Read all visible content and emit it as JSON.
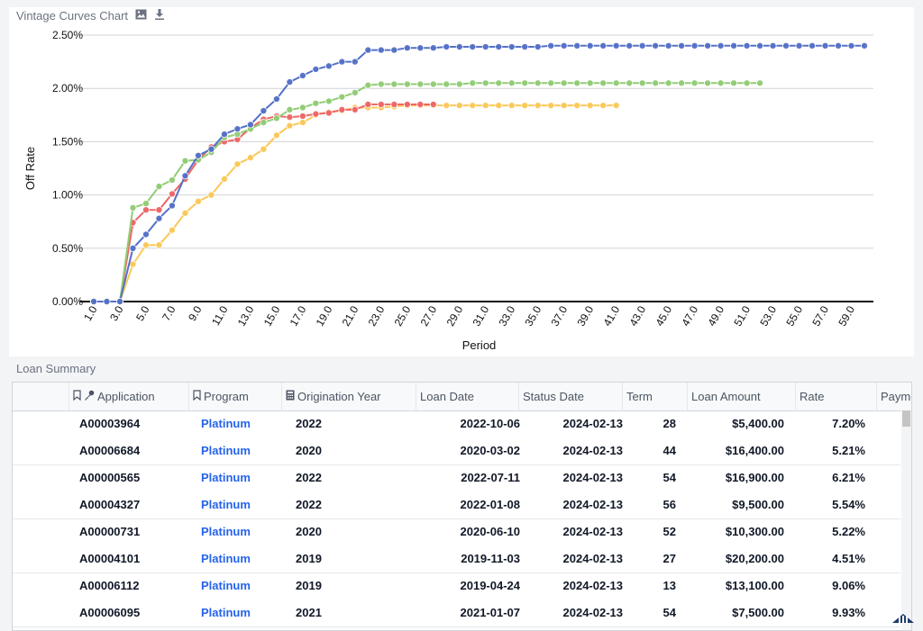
{
  "chart_panel": {
    "title": "Vintage Curves Chart",
    "image_icon": "image-icon",
    "download_icon": "download-icon"
  },
  "chart_data": {
    "type": "line",
    "title": "Vintage Curves Chart",
    "xlabel": "Period",
    "ylabel": "Off Rate",
    "ylim": [
      0,
      2.5
    ],
    "yticks": [
      "0.00%",
      "0.50%",
      "1.00%",
      "1.50%",
      "2.00%",
      "2.50%"
    ],
    "xticks": [
      "1.0",
      "3.0",
      "5.0",
      "7.0",
      "9.0",
      "11.0",
      "13.0",
      "15.0",
      "17.0",
      "19.0",
      "21.0",
      "23.0",
      "25.0",
      "27.0",
      "29.0",
      "31.0",
      "33.0",
      "35.0",
      "37.0",
      "39.0",
      "41.0",
      "43.0",
      "45.0",
      "47.0",
      "49.0",
      "51.0",
      "53.0",
      "55.0",
      "57.0",
      "59.0"
    ],
    "xlim": [
      1,
      60
    ],
    "grid": true,
    "series": [
      {
        "color": "#5470c6",
        "values": [
          0,
          0,
          0,
          0.5,
          0.63,
          0.78,
          0.9,
          1.18,
          1.37,
          1.43,
          1.57,
          1.62,
          1.66,
          1.79,
          1.9,
          2.06,
          2.12,
          2.18,
          2.21,
          2.25,
          2.25,
          2.36,
          2.36,
          2.36,
          2.38,
          2.38,
          2.38,
          2.39,
          2.39,
          2.39,
          2.39,
          2.39,
          2.39,
          2.39,
          2.39,
          2.4,
          2.4,
          2.4,
          2.4,
          2.4,
          2.4,
          2.4,
          2.4,
          2.4,
          2.4,
          2.4,
          2.4,
          2.4,
          2.4,
          2.4,
          2.4,
          2.4,
          2.4,
          2.4,
          2.4,
          2.4,
          2.4,
          2.4,
          2.4,
          2.4
        ]
      },
      {
        "color": "#91cc75",
        "values": [
          0,
          0,
          0,
          0.88,
          0.92,
          1.08,
          1.14,
          1.32,
          1.33,
          1.4,
          1.54,
          1.57,
          1.62,
          1.68,
          1.72,
          1.8,
          1.82,
          1.86,
          1.88,
          1.92,
          1.96,
          2.03,
          2.04,
          2.04,
          2.04,
          2.04,
          2.04,
          2.04,
          2.04,
          2.05,
          2.05,
          2.05,
          2.05,
          2.05,
          2.05,
          2.05,
          2.05,
          2.05,
          2.05,
          2.05,
          2.05,
          2.05,
          2.05,
          2.05,
          2.05,
          2.05,
          2.05,
          2.05,
          2.05,
          2.05,
          2.05,
          2.05
        ]
      },
      {
        "color": "#ee6666",
        "values": [
          0,
          0,
          0,
          0.74,
          0.86,
          0.86,
          1.01,
          1.15,
          1.33,
          1.45,
          1.5,
          1.52,
          1.63,
          1.71,
          1.74,
          1.73,
          1.74,
          1.76,
          1.77,
          1.8,
          1.8,
          1.85,
          1.85,
          1.85,
          1.85,
          1.85,
          1.85
        ]
      },
      {
        "color": "#fac858",
        "values": [
          0,
          0,
          0,
          0.35,
          0.53,
          0.53,
          0.67,
          0.83,
          0.94,
          1.0,
          1.15,
          1.29,
          1.35,
          1.43,
          1.56,
          1.65,
          1.68,
          1.75,
          1.78,
          1.79,
          1.82,
          1.82,
          1.82,
          1.83,
          1.84,
          1.84,
          1.84,
          1.84,
          1.84,
          1.84,
          1.84,
          1.84,
          1.84,
          1.84,
          1.84,
          1.84,
          1.84,
          1.84,
          1.84,
          1.84,
          1.84
        ]
      }
    ]
  },
  "summary": {
    "label": "Loan Summary",
    "columns": [
      "Application",
      "Program",
      "Origination Year",
      "Loan Date",
      "Status Date",
      "Term",
      "Loan Amount",
      "Rate",
      "Payme"
    ],
    "rows": [
      [
        "A00003964",
        "Platinum",
        "2022",
        "2022-10-06",
        "2024-02-13",
        "28",
        "$5,400.00",
        "7.20%"
      ],
      [
        "A00006684",
        "Platinum",
        "2020",
        "2020-03-02",
        "2024-02-13",
        "44",
        "$16,400.00",
        "5.21%"
      ],
      [
        "A00000565",
        "Platinum",
        "2022",
        "2022-07-11",
        "2024-02-13",
        "54",
        "$16,900.00",
        "6.21%"
      ],
      [
        "A00004327",
        "Platinum",
        "2022",
        "2022-01-08",
        "2024-02-13",
        "56",
        "$9,500.00",
        "5.54%"
      ],
      [
        "A00000731",
        "Platinum",
        "2020",
        "2020-06-10",
        "2024-02-13",
        "52",
        "$10,300.00",
        "5.22%"
      ],
      [
        "A00004101",
        "Platinum",
        "2019",
        "2019-11-03",
        "2024-02-13",
        "27",
        "$20,200.00",
        "4.51%"
      ],
      [
        "A00006112",
        "Platinum",
        "2019",
        "2019-04-24",
        "2024-02-13",
        "13",
        "$13,100.00",
        "9.06%"
      ],
      [
        "A00006095",
        "Platinum",
        "2021",
        "2021-01-07",
        "2024-02-13",
        "54",
        "$7,500.00",
        "9.93%"
      ]
    ]
  }
}
